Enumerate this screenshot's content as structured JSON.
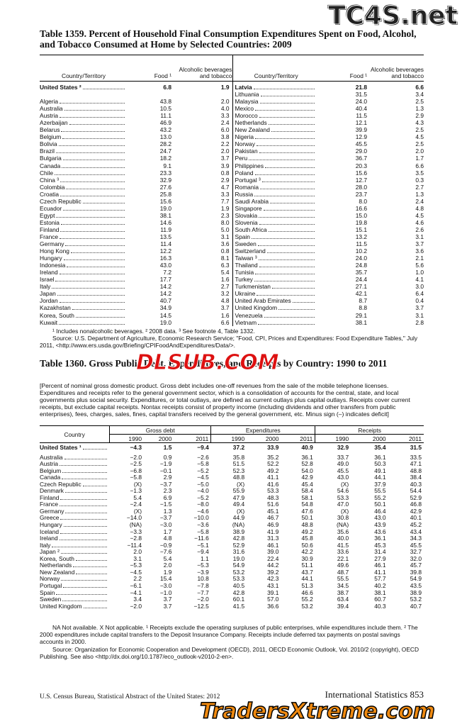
{
  "watermarks": [
    "TC4S.net",
    "DLSUB.COM",
    "TradersXtreme.com"
  ],
  "table1359": {
    "title": "Table 1359. Percent of Household Final Consumption Expenditures Spent on Food, Alcohol, and Tobacco Consumed at Home by Selected Countries: 2009",
    "headers": [
      "Country/Territory",
      "Food ¹",
      "Alcoholic beverages and tobacco"
    ],
    "left_rows": [
      [
        "United States ²",
        "6.8",
        "1.9"
      ],
      [
        "Algeria",
        "43.8",
        "2.0"
      ],
      [
        "Australia",
        "10.5",
        "4.0"
      ],
      [
        "Austria",
        "11.1",
        "3.3"
      ],
      [
        "Azerbaijan",
        "46.9",
        "2.4"
      ],
      [
        "Belarus",
        "43.2",
        "6.0"
      ],
      [
        "Belgium",
        "13.0",
        "3.8"
      ],
      [
        "Bolivia",
        "28.2",
        "2.2"
      ],
      [
        "Brazil",
        "24.7",
        "2.0"
      ],
      [
        "Bulgaria",
        "18.2",
        "3.7"
      ],
      [
        "Canada",
        "9.1",
        "3.9"
      ],
      [
        "Chile",
        "23.3",
        "0.8"
      ],
      [
        "China ³",
        "32.9",
        "2.9"
      ],
      [
        "Colombia",
        "27.6",
        "4.7"
      ],
      [
        "Croatia",
        "25.8",
        "3.3"
      ],
      [
        "Czech Republic",
        "15.6",
        "7.7"
      ],
      [
        "Ecuador",
        "19.0",
        "1.9"
      ],
      [
        "Egypt",
        "38.1",
        "2.3"
      ],
      [
        "Estonia",
        "14.6",
        "8.0"
      ],
      [
        "Finland",
        "11.9",
        "5.0"
      ],
      [
        "France",
        "13.5",
        "3.1"
      ],
      [
        "Germany",
        "11.4",
        "3.6"
      ],
      [
        "Hong Kong",
        "12.2",
        "0.8"
      ],
      [
        "Hungary",
        "16.3",
        "8.1"
      ],
      [
        "Indonesia",
        "43.0",
        "6.3"
      ],
      [
        "Ireland",
        "7.2",
        "5.4"
      ],
      [
        "Israel",
        "17.7",
        "1.6"
      ],
      [
        "Italy",
        "14.2",
        "2.7"
      ],
      [
        "Japan",
        "14.2",
        "3.2"
      ],
      [
        "Jordan",
        "40.7",
        "4.8"
      ],
      [
        "Kazakhstan",
        "34.9",
        "3.7"
      ],
      [
        "Korea, South",
        "14.5",
        "1.6"
      ],
      [
        "Kuwait",
        "19.0",
        "6.6"
      ]
    ],
    "right_rows": [
      [
        "Latvia",
        "21.8",
        "6.6"
      ],
      [
        "Lithuania",
        "31.5",
        "3.4"
      ],
      [
        "Malaysia",
        "24.0",
        "2.5"
      ],
      [
        "Mexico",
        "40.4",
        "1.3"
      ],
      [
        "Morocco",
        "11.5",
        "2.9"
      ],
      [
        "Netherlands",
        "12.1",
        "4.3"
      ],
      [
        "New Zealand",
        "39.9",
        "2.5"
      ],
      [
        "Nigeria",
        "12.9",
        "4.5"
      ],
      [
        "Norway",
        "45.5",
        "2.5"
      ],
      [
        "Pakistan",
        "29.0",
        "2.0"
      ],
      [
        "Peru",
        "36.7",
        "1.7"
      ],
      [
        "Philippines",
        "20.3",
        "6.6"
      ],
      [
        "Poland",
        "15.6",
        "3.5"
      ],
      [
        "Portugal ³",
        "12.7",
        "0.3"
      ],
      [
        "Romania",
        "28.0",
        "2.7"
      ],
      [
        "Russia",
        "23.7",
        "1.3"
      ],
      [
        "Saudi Arabia",
        "8.0",
        "2.4"
      ],
      [
        "Singapore",
        "16.6",
        "4.8"
      ],
      [
        "Slovakia",
        "15.0",
        "4.5"
      ],
      [
        "Slovenia",
        "19.8",
        "4.6"
      ],
      [
        "South Africa",
        "15.1",
        "2.6"
      ],
      [
        "Spain",
        "13.2",
        "3.1"
      ],
      [
        "Sweden",
        "11.5",
        "3.7"
      ],
      [
        "Switzerland",
        "10.2",
        "3.6"
      ],
      [
        "Taiwan ³",
        "24.0",
        "2.1"
      ],
      [
        "Thailand",
        "24.8",
        "5.6"
      ],
      [
        "Tunisia",
        "35.7",
        "1.0"
      ],
      [
        "Turkey",
        "24.4",
        "4.1"
      ],
      [
        "Turkmenistan",
        "27.1",
        "3.0"
      ],
      [
        "Ukraine",
        "42.1",
        "6.4"
      ],
      [
        "United Arab Emirates",
        "8.7",
        "0.4"
      ],
      [
        "United Kingdom",
        "8.8",
        "3.7"
      ],
      [
        "Venezuela",
        "29.1",
        "3.1"
      ],
      [
        "Vietnam",
        "38.1",
        "2.8"
      ]
    ],
    "footnotes": "¹ Includes nonalcoholic beverages. ² 2008 data. ³ See footnote 4, Table 1332.",
    "source": "Source: U.S. Department of Agriculture, Economic Research Service; \"Food, CPI, Prices and Expenditures: Food Expenditure Tables,\" July 2011, <http://www.ers.usda.gov/Briefing/CPIFoodAndExpenditures/Data/>."
  },
  "table1360": {
    "title": "Table 1360. Gross Public Debt, Expenditures, and Receipts by Country: 1990 to 2011",
    "headnote": "[Percent of nominal gross domestic product. Gross debt includes one-off revenues from the sale of the mobile telephone licenses. Expenditures and receipts refer to the general government sector, which is a consolidation of accounts for the central, state, and local governments plus social security. Expenditures, or total outlays, are defined as current outlays plus capital outlays. Receipts cover current receipts, but exclude capital receipts. Nontax receipts consist of property income (including dividends and other transfers from public enterprises), fees, charges, sales, fines, capital transfers received by the general government, etc. Minus sign (–) indicates deficit]",
    "country_header": "Country",
    "groups": [
      "Gross debt",
      "Expenditures",
      "Receipts"
    ],
    "years": [
      "1990",
      "2000",
      "2011"
    ],
    "rows": [
      [
        "United States ¹",
        "−4.3",
        "1.5",
        "−9.4",
        "37.2",
        "33.9",
        "40.9",
        "32.9",
        "35.4",
        "31.5"
      ],
      [
        "Australia",
        "−2.0",
        "0.9",
        "−2.6",
        "35.8",
        "35.2",
        "36.1",
        "33.7",
        "36.1",
        "33.5"
      ],
      [
        "Austria",
        "−2.5",
        "−1.9",
        "−5.8",
        "51.5",
        "52.2",
        "52.8",
        "49.0",
        "50.3",
        "47.1"
      ],
      [
        "Belgium",
        "−6.8",
        "−0.1",
        "−5.2",
        "52.3",
        "49.2",
        "54.0",
        "45.5",
        "49.1",
        "48.8"
      ],
      [
        "Canada",
        "−5.8",
        "2.9",
        "−4.5",
        "48.8",
        "41.1",
        "42.9",
        "43.0",
        "44.1",
        "38.4"
      ],
      [
        "Czech Republic",
        "(X)",
        "−3.7",
        "−5.0",
        "(X)",
        "41.6",
        "45.4",
        "(X)",
        "37.9",
        "40.3"
      ],
      [
        "Denmark",
        "−1.3",
        "2.3",
        "−4.0",
        "55.9",
        "53.3",
        "58.4",
        "54.6",
        "55.5",
        "54.4"
      ],
      [
        "Finland",
        "5.4",
        "6.9",
        "−5.2",
        "47.9",
        "48.3",
        "58.1",
        "53.3",
        "55.2",
        "52.9"
      ],
      [
        "France",
        "−2.4",
        "−1.5",
        "−8.0",
        "49.4",
        "51.6",
        "54.8",
        "47.0",
        "50.1",
        "46.8"
      ],
      [
        "Germany",
        "(X)",
        "1.3",
        "−4.6",
        "(X)",
        "45.1",
        "47.6",
        "(X)",
        "46.4",
        "42.9"
      ],
      [
        "Greece",
        "−14.0",
        "−3.7",
        "−10.0",
        "44.9",
        "46.7",
        "50.1",
        "30.8",
        "43.0",
        "40.1"
      ],
      [
        "Hungary",
        "(NA)",
        "−3.0",
        "−3.6",
        "(NA)",
        "46.9",
        "48.8",
        "(NA)",
        "43.9",
        "45.2"
      ],
      [
        "Iceland",
        "−3.3",
        "1.7",
        "−5.8",
        "38.9",
        "41.9",
        "49.2",
        "35.6",
        "43.6",
        "43.4"
      ],
      [
        "Ireland",
        "−2.8",
        "4.8",
        "−11.6",
        "42.8",
        "31.3",
        "45.8",
        "40.0",
        "36.1",
        "34.3"
      ],
      [
        "Italy",
        "−11.4",
        "−0.9",
        "−5.1",
        "52.9",
        "46.1",
        "50.6",
        "41.5",
        "45.3",
        "45.5"
      ],
      [
        "Japan ²",
        "2.0",
        "−7.6",
        "−9.4",
        "31.6",
        "39.0",
        "42.2",
        "33.6",
        "31.4",
        "32.7"
      ],
      [
        "Korea, South",
        "3.1",
        "5.4",
        "1.1",
        "19.0",
        "22.4",
        "30.9",
        "22.1",
        "27.9",
        "32.0"
      ],
      [
        "Netherlands",
        "−5.3",
        "2.0",
        "−5.3",
        "54.9",
        "44.2",
        "51.1",
        "49.6",
        "46.1",
        "45.7"
      ],
      [
        "New Zealand",
        "−4.5",
        "1.9",
        "−3.9",
        "53.2",
        "39.2",
        "43.7",
        "48.7",
        "41.1",
        "39.8"
      ],
      [
        "Norway",
        "2.2",
        "15.4",
        "10.8",
        "53.3",
        "42.3",
        "44.1",
        "55.5",
        "57.7",
        "54.9"
      ],
      [
        "Portugal",
        "−6.1",
        "−3.0",
        "−7.8",
        "40.5",
        "43.1",
        "51.3",
        "34.5",
        "40.2",
        "43.5"
      ],
      [
        "Spain",
        "−4.1",
        "−1.0",
        "−7.7",
        "42.8",
        "39.1",
        "46.6",
        "38.7",
        "38.1",
        "38.9"
      ],
      [
        "Sweden",
        "3.4",
        "3.7",
        "−2.0",
        "60.1",
        "57.0",
        "55.2",
        "63.4",
        "60.7",
        "53.2"
      ],
      [
        "United Kingdom",
        "−2.0",
        "3.7",
        "−12.5",
        "41.5",
        "36.6",
        "53.2",
        "39.4",
        "40.3",
        "40.7"
      ]
    ],
    "footnotes": "NA Not available. X Not applicable. ¹ Receipts exclude the operating surpluses of public enterprises, while expenditures include them. ² The 2000 expenditures include capital transfers to the Deposit Insurance Company. Receipts include deferred tax payments on postal savings accounts in 2000.",
    "source": "Source: Organization for Economic Cooperation and Development (OECD), 2011, OECD Economic Outlook, Vol. 2010/2 (copyright), OECD Publishing. See also <http://dx.doi.org/10.1787/eco_outlook-v2010-2-en>."
  },
  "footer": {
    "left": "U.S. Census Bureau, Statistical Abstract of the United States: 2012",
    "right": "International Statistics 853"
  }
}
